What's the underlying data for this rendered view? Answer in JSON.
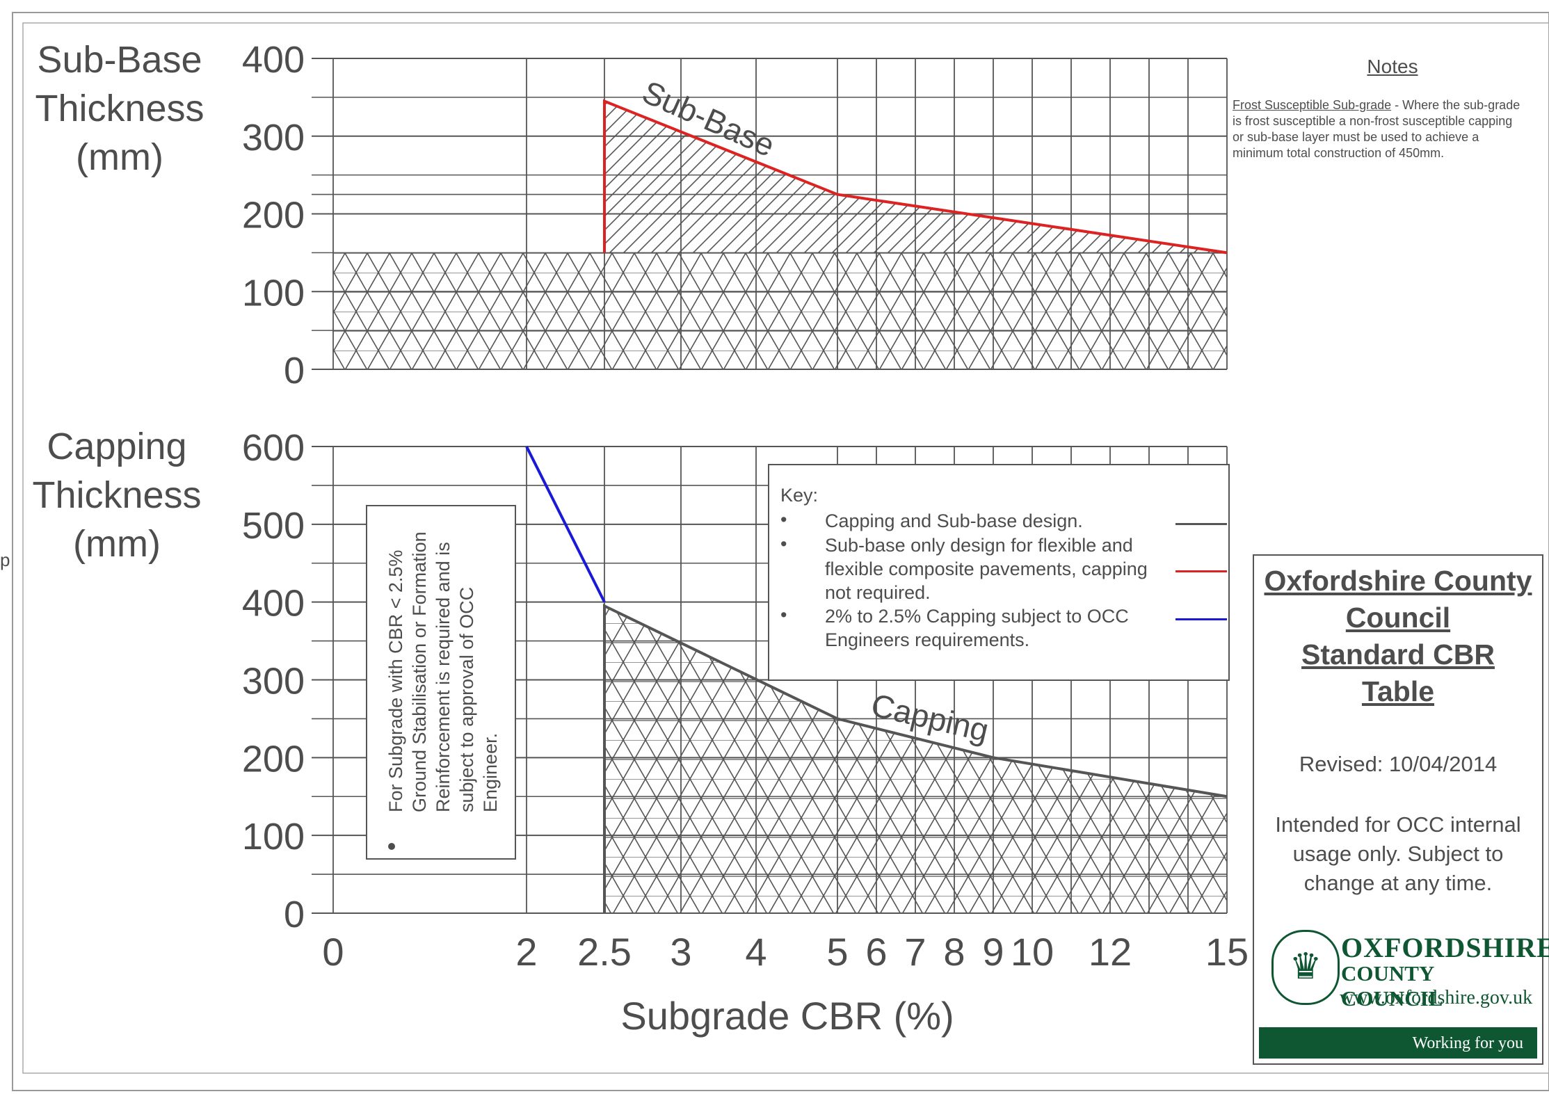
{
  "chart_data": [
    {
      "type": "area",
      "ylabel": "Sub-Base Thickness (mm)",
      "ylabel_lines": [
        "Sub-Base",
        "Thickness",
        "(mm)"
      ],
      "ylim": [
        0,
        400
      ],
      "yticks": [
        0,
        100,
        200,
        300,
        400
      ],
      "x_scale": "log-like",
      "series": [
        {
          "name": "Sub-Base",
          "color": "#dd2222",
          "x": [
            2.5,
            2.5,
            5,
            15
          ],
          "y": [
            150,
            345,
            225,
            150
          ]
        }
      ],
      "base_layer_y": 150,
      "grid": true
    },
    {
      "type": "area",
      "ylabel": "Capping Thickness (mm)",
      "ylabel_lines": [
        "Capping",
        "Thickness",
        "(mm)"
      ],
      "ylim": [
        0,
        600
      ],
      "yticks": [
        0,
        100,
        200,
        300,
        400,
        500,
        600
      ],
      "xlabel": "Subgrade CBR (%)",
      "xticks": [
        "0",
        "2",
        "2.5",
        "3",
        "4",
        "5",
        "6",
        "7",
        "8",
        "9",
        "10",
        "12",
        "15"
      ],
      "series": [
        {
          "name": "Capping",
          "color": "#555555",
          "x": [
            2.5,
            5,
            9,
            15
          ],
          "y": [
            395,
            250,
            200,
            150
          ]
        },
        {
          "name": "2% to 2.5% Capping",
          "color": "#1a1ad6",
          "x": [
            2,
            2.5
          ],
          "y": [
            600,
            400
          ]
        }
      ],
      "grid": true
    }
  ],
  "area_labels": {
    "subbase": "Sub-Base",
    "capping": "Capping"
  },
  "notes": {
    "heading": "Notes",
    "term": "Frost Susceptible Sub-grade",
    "text": " - Where the sub-grade is frost susceptible a non-frost susceptible capping or sub-base layer must be used to achieve a minimum total construction of 450mm."
  },
  "key": {
    "title": "Key:",
    "items": [
      {
        "text": "Capping and Sub-base design.",
        "color": "#555555"
      },
      {
        "text": "Sub-base only design for flexible and flexible composite pavements, capping not required.",
        "color": "#dd2222"
      },
      {
        "text": "2% to 2.5% Capping subject to OCC Engineers requirements.",
        "color": "#1a1ad6"
      }
    ],
    "bullet": "•"
  },
  "low_cbr_note": "For Subgrade with CBR < 2.5% Ground Stabilisation or Formation Reinforcement is required and is subject to approval of OCC Engineer.",
  "title_block": {
    "title_lines": [
      "Oxfordshire County",
      "Council",
      "Standard CBR",
      "Table"
    ],
    "revised": "Revised: 10/04/2014",
    "intended": "Intended for OCC internal usage only. Subject to change at any time."
  },
  "logo": {
    "line1": "OXFORDSHIRE",
    "line2": "COUNTY COUNCIL",
    "line3": "www.oxfordshire.gov.uk",
    "line4": "Working for you",
    "crest_icon": "crest-icon"
  },
  "edge_mark": "p"
}
